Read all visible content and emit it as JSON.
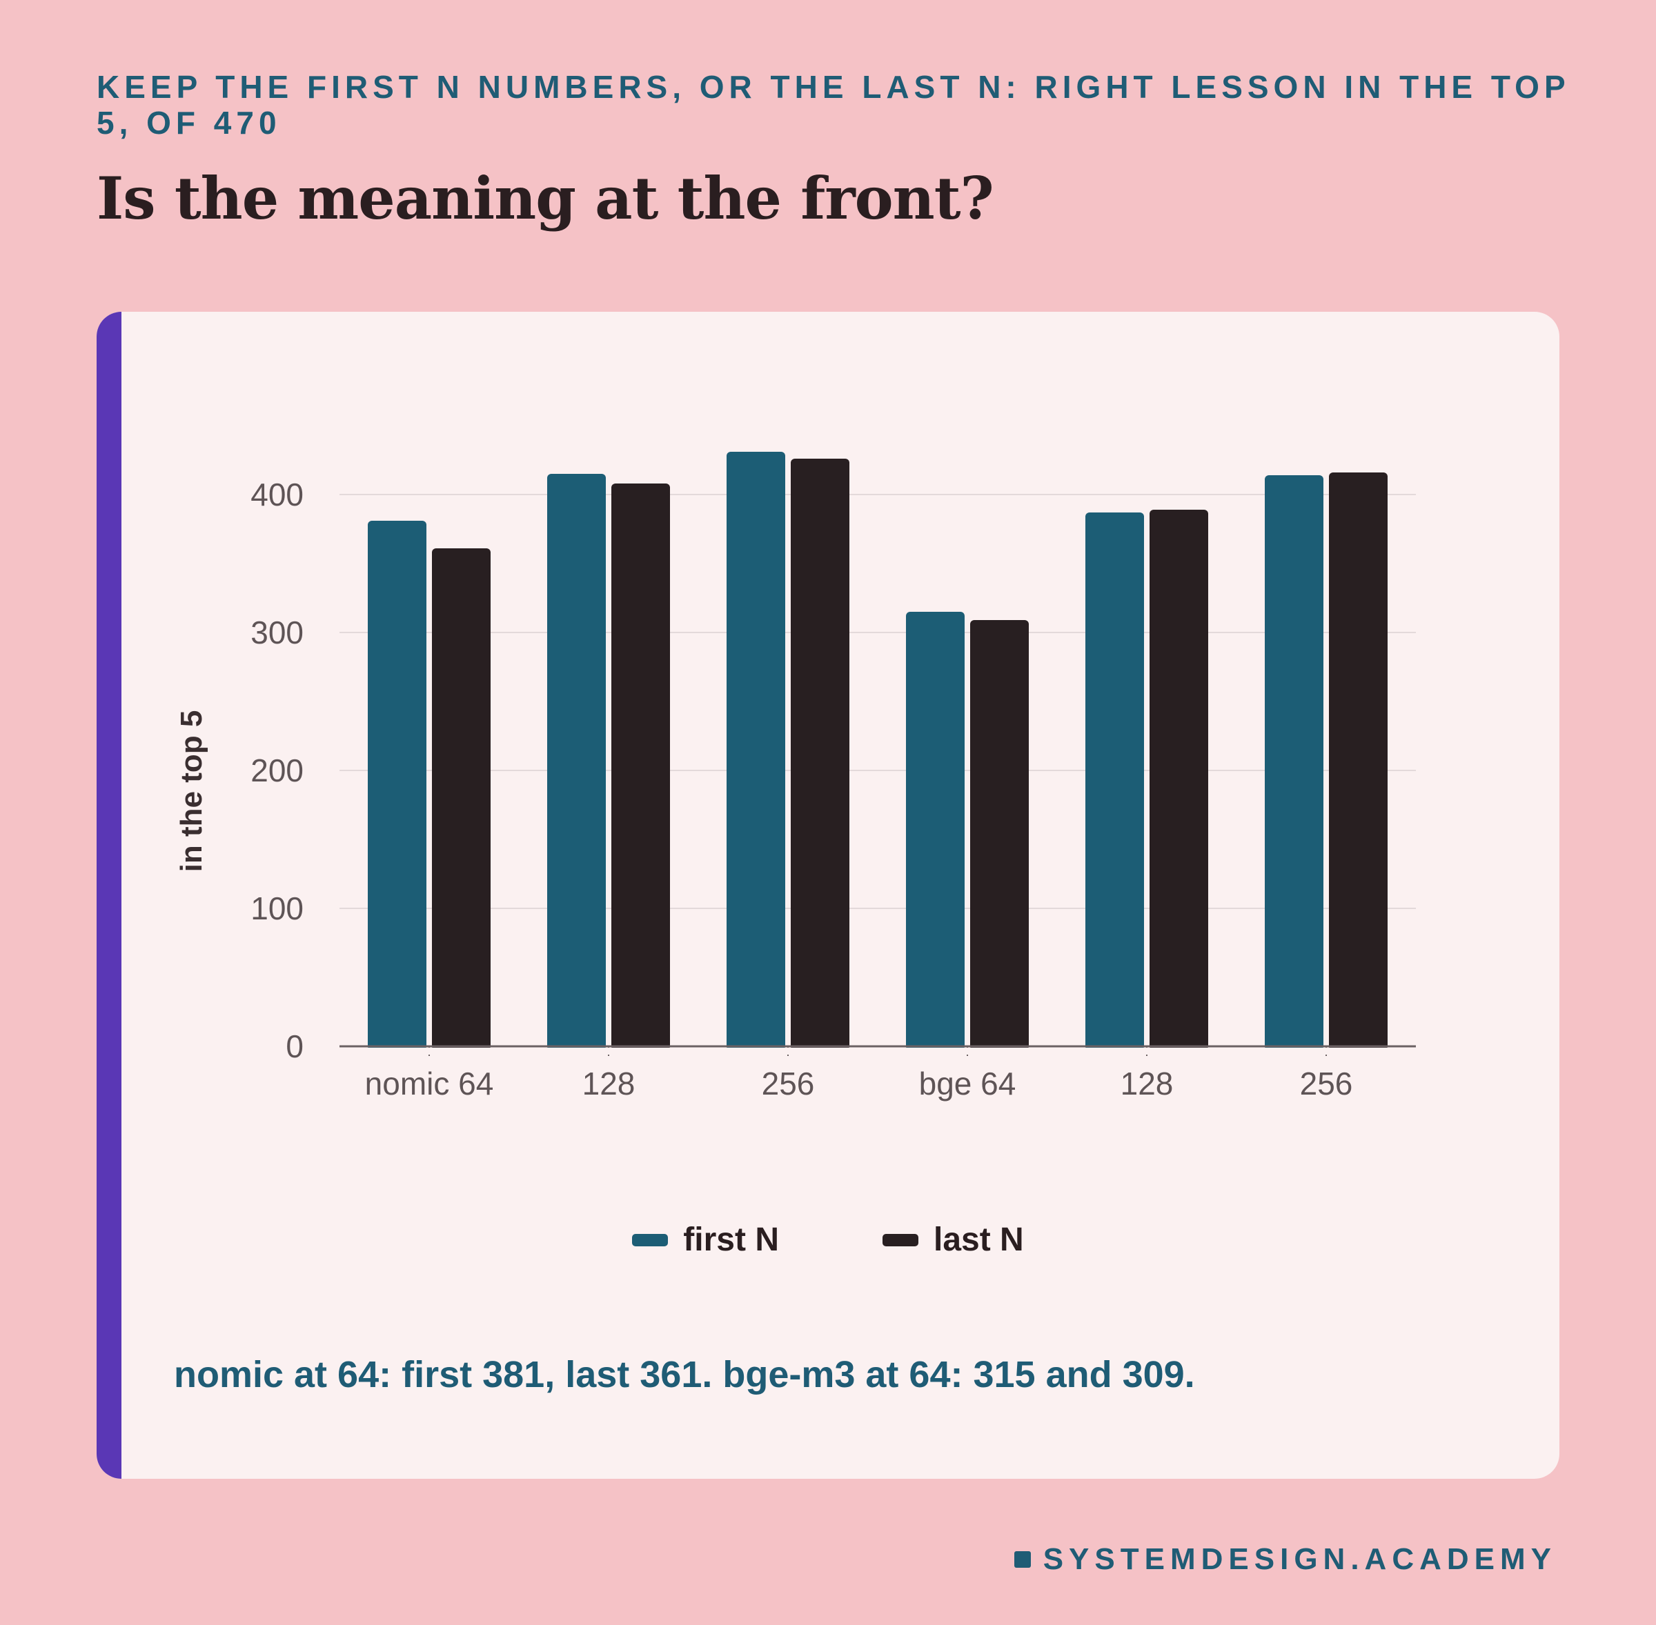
{
  "header": {
    "kicker": "KEEP THE FIRST N NUMBERS, OR THE LAST N: RIGHT LESSON IN THE TOP 5, OF 470",
    "headline": "Is the meaning at the front?"
  },
  "colors": {
    "background": "#f5c2c6",
    "card": "#fbf1f1",
    "accent_bar": "#5a37b5",
    "first_n": "#1c5d75",
    "last_n": "#281f21",
    "text_blue": "#1f5c75"
  },
  "chart_data": {
    "type": "bar",
    "categories": [
      "nomic 64",
      "128",
      "256",
      "bge 64",
      "128",
      "256"
    ],
    "series": [
      {
        "name": "first N",
        "color": "#1c5d75",
        "values": [
          381,
          415,
          431,
          315,
          387,
          414
        ]
      },
      {
        "name": "last N",
        "color": "#281f21",
        "values": [
          361,
          408,
          426,
          309,
          389,
          416
        ]
      }
    ],
    "title": "",
    "xlabel": "",
    "ylabel": "in the top 5",
    "ylim": [
      0,
      400
    ],
    "yticks": [
      0,
      100,
      200,
      300,
      400
    ],
    "grid": true,
    "legend_position": "bottom-center"
  },
  "caption": "nomic at 64: first 381, last 361. bge-m3 at 64: 315 and 309.",
  "footer": {
    "brand": "SYSTEMDESIGN.ACADEMY"
  }
}
